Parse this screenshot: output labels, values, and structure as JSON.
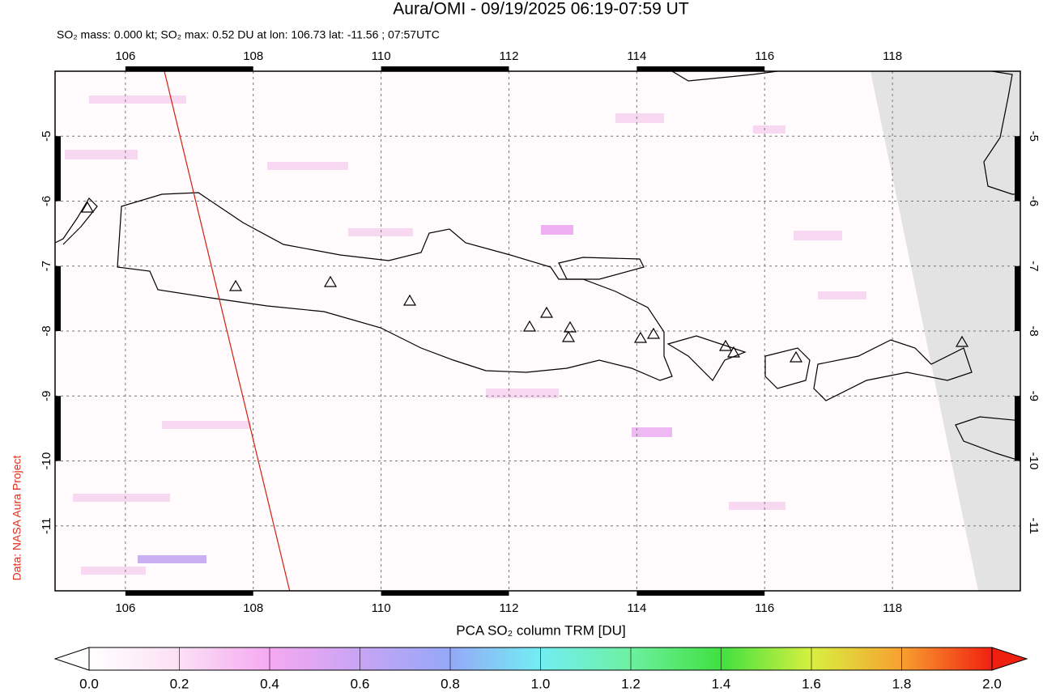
{
  "title": "Aura/OMI - 09/19/2025 06:19-07:59 UT",
  "subtitle": "SO₂ mass: 0.000 kt; SO₂ max: 0.52 DU at lon: 106.73 lat: -11.56 ; 07:57UTC",
  "credit": "Data: NASA Aura Project",
  "map": {
    "xlim": [
      104.9,
      120
    ],
    "ylim": [
      -12,
      -4
    ],
    "xticks": [
      106,
      108,
      110,
      112,
      114,
      116,
      118
    ],
    "yticks": [
      -5,
      -6,
      -7,
      -8,
      -9,
      -10,
      -11
    ],
    "grid": true
  },
  "colorbar": {
    "title": "PCA SO₂ column TRM [DU]",
    "lim": [
      0,
      2
    ],
    "ticks": [
      {
        "value": 0,
        "label": "0.0"
      },
      {
        "value": 0.2,
        "label": "0.2"
      },
      {
        "value": 0.4,
        "label": "0.4"
      },
      {
        "value": 0.6,
        "label": "0.6"
      },
      {
        "value": 0.8,
        "label": "0.8"
      },
      {
        "value": 1,
        "label": "1.0"
      },
      {
        "value": 1.2,
        "label": "1.2"
      },
      {
        "value": 1.4,
        "label": "1.4"
      },
      {
        "value": 1.6,
        "label": "1.6"
      },
      {
        "value": 1.8,
        "label": "1.8"
      },
      {
        "value": 2,
        "label": "2.0"
      }
    ]
  }
}
